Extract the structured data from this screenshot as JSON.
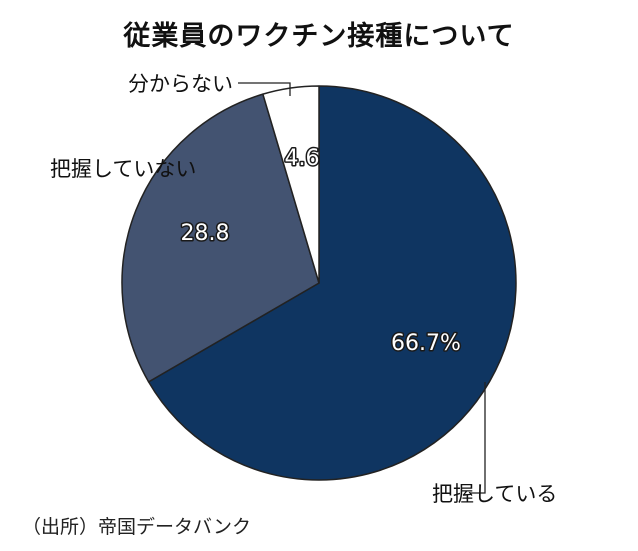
{
  "title": "従業員のワクチン接種について",
  "source": "（出所）帝国データバンク",
  "colors": {
    "slice_knowing": "#0f3561",
    "slice_not_knowing": "#435371",
    "slice_unknown": "#ffffff",
    "outline": "#222222"
  },
  "chart_data": {
    "type": "pie",
    "title": "従業員のワクチン接種について",
    "unit": "%",
    "start": "12 o'clock",
    "direction": "clockwise",
    "slices": [
      {
        "label": "把握している",
        "value": 66.7,
        "value_label": "66.7%",
        "color": "#0f3561"
      },
      {
        "label": "把握していない",
        "value": 28.8,
        "value_label": "28.8",
        "color": "#435371"
      },
      {
        "label": "分からない",
        "value": 4.6,
        "value_label": "4.6",
        "color": "#ffffff"
      }
    ]
  }
}
